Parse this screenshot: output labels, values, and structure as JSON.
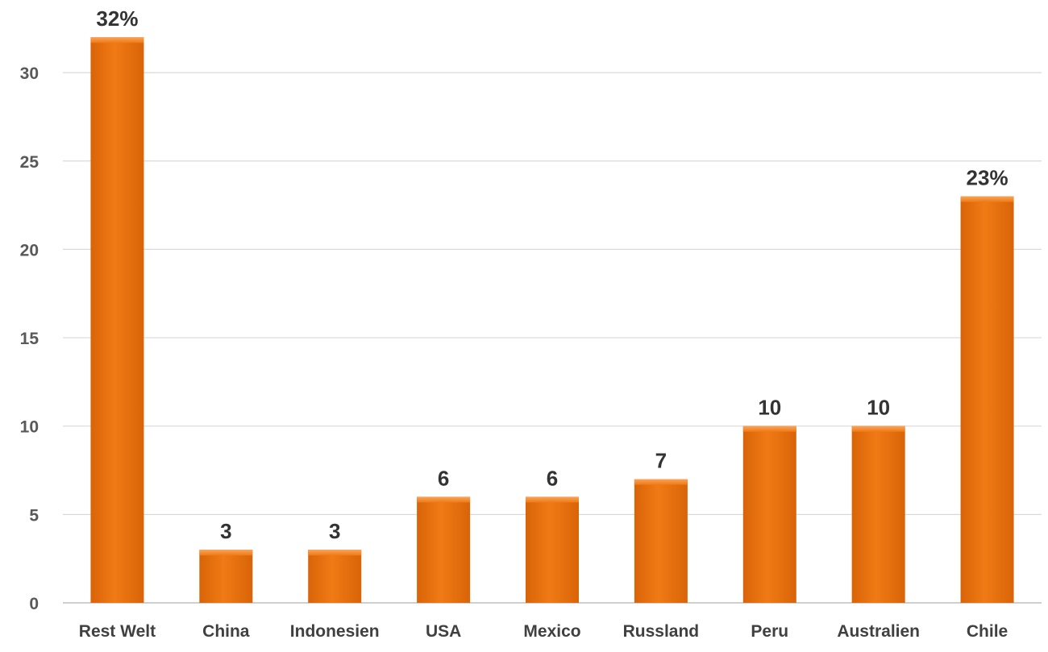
{
  "chart_data": {
    "type": "bar",
    "title": "",
    "xlabel": "",
    "ylabel": "",
    "categories": [
      "Rest Welt",
      "China",
      "Indonesien",
      "USA",
      "Mexico",
      "Russland",
      "Peru",
      "Australien",
      "Chile"
    ],
    "values": [
      32,
      3,
      3,
      6,
      6,
      7,
      10,
      10,
      23
    ],
    "data_labels": [
      "32%",
      "3",
      "3",
      "6",
      "6",
      "7",
      "10",
      "10",
      "23%"
    ],
    "ylim": [
      0,
      32
    ],
    "yticks": [
      0,
      5,
      10,
      15,
      20,
      25,
      30
    ],
    "grid": true,
    "legend": "none",
    "bar_color": "#F07A14",
    "bar_color_dark": "#D96408",
    "bar_color_light": "#F8A45A"
  }
}
